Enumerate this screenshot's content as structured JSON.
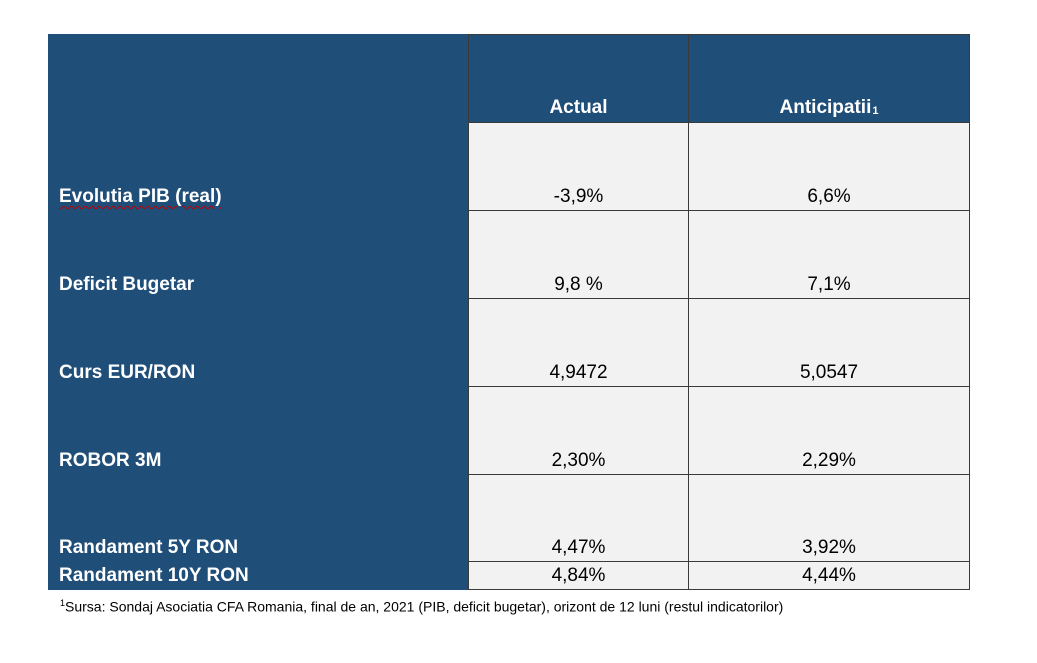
{
  "table": {
    "headers": {
      "actual": "Actual",
      "anticipatii": "Anticipatii",
      "anticipatii_sup": "1"
    },
    "rows": [
      {
        "label": "Evolutia PIB (real)",
        "actual": "-3,9%",
        "anticipatii": "6,6%"
      },
      {
        "label": "Deficit Bugetar",
        "actual": "9,8 %",
        "anticipatii": "7,1%"
      },
      {
        "label": "Curs EUR/RON",
        "actual": "4,9472",
        "anticipatii": "5,0547"
      },
      {
        "label": "ROBOR 3M",
        "actual": "2,30%",
        "anticipatii": "2,29%"
      },
      {
        "label": "Randament 5Y RON",
        "actual": "4,47%",
        "anticipatii": "3,92%"
      },
      {
        "label": "Randament 10Y RON",
        "actual": "4,84%",
        "anticipatii": "4,44%"
      }
    ]
  },
  "footnote": {
    "marker": "1",
    "text": "Sursa: Sondaj Asociatia CFA Romania, final de an, 2021 (PIB, deficit  bugetar), orizont de 12 luni (restul indicatorilor)"
  },
  "colors": {
    "header_bg": "#1f4e79",
    "cell_bg": "#f2f2f2",
    "border": "#3a3a3a"
  }
}
